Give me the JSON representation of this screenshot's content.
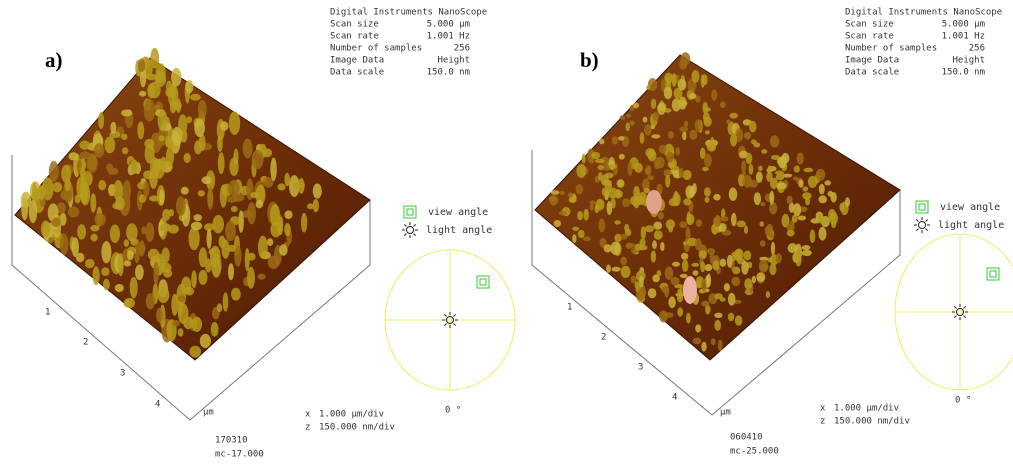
{
  "panels": [
    {
      "label": "a)",
      "header": "Digital Instruments NanoScope",
      "info": [
        {
          "key": "Scan size",
          "value": "5.000 µm"
        },
        {
          "key": "Scan rate",
          "value": "1.001 Hz"
        },
        {
          "key": "Number of samples",
          "value": "256"
        },
        {
          "key": "Image Data",
          "value": "Height"
        },
        {
          "key": "Data scale",
          "value": "150.0 nm"
        }
      ],
      "axis_ticks": [
        "1",
        "2",
        "3",
        "4",
        "µm"
      ],
      "scale": [
        {
          "axis": "x",
          "value": "1.000 µm/div"
        },
        {
          "axis": "z",
          "value": "150.000 nm/div"
        }
      ],
      "legend": {
        "view_angle": "view angle",
        "light_angle": "light angle",
        "zero_angle": "0 °"
      },
      "footer": [
        "170310",
        "mc-17.000"
      ]
    },
    {
      "label": "b)",
      "header": "Digital Instruments NanoScope",
      "info": [
        {
          "key": "Scan size",
          "value": "5.000 µm"
        },
        {
          "key": "Scan rate",
          "value": "1.001 Hz"
        },
        {
          "key": "Number of samples",
          "value": "256"
        },
        {
          "key": "Image Data",
          "value": "Height"
        },
        {
          "key": "Data scale",
          "value": "150.0 nm"
        }
      ],
      "axis_ticks": [
        "1",
        "2",
        "3",
        "4",
        "µm"
      ],
      "scale": [
        {
          "axis": "x",
          "value": "1.000 µm/div"
        },
        {
          "axis": "z",
          "value": "150.000 nm/div"
        }
      ],
      "legend": {
        "view_angle": "view angle",
        "light_angle": "light angle",
        "zero_angle": "0 °"
      },
      "footer": [
        "060410",
        "mc-25.000"
      ]
    }
  ]
}
